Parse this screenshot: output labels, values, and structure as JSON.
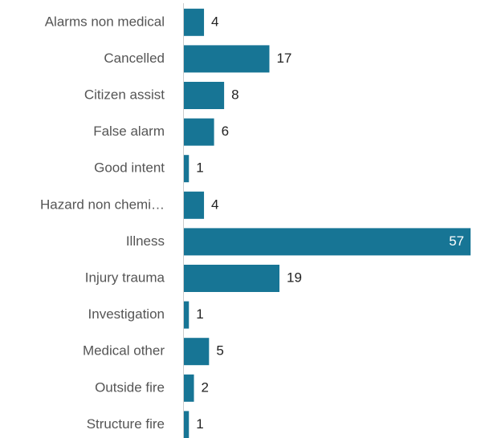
{
  "chart_data": {
    "type": "hbar",
    "categories": [
      "Alarms non medical",
      "Cancelled",
      "Citizen assist",
      "False alarm",
      "Good intent",
      "Hazard non chemi…",
      "Illness",
      "Injury trauma",
      "Investigation",
      "Medical other",
      "Outside fire",
      "Structure fire"
    ],
    "values": [
      4,
      17,
      8,
      6,
      1,
      4,
      57,
      19,
      1,
      5,
      2,
      1
    ],
    "color": "#177595",
    "xlim": [
      0,
      57
    ]
  }
}
